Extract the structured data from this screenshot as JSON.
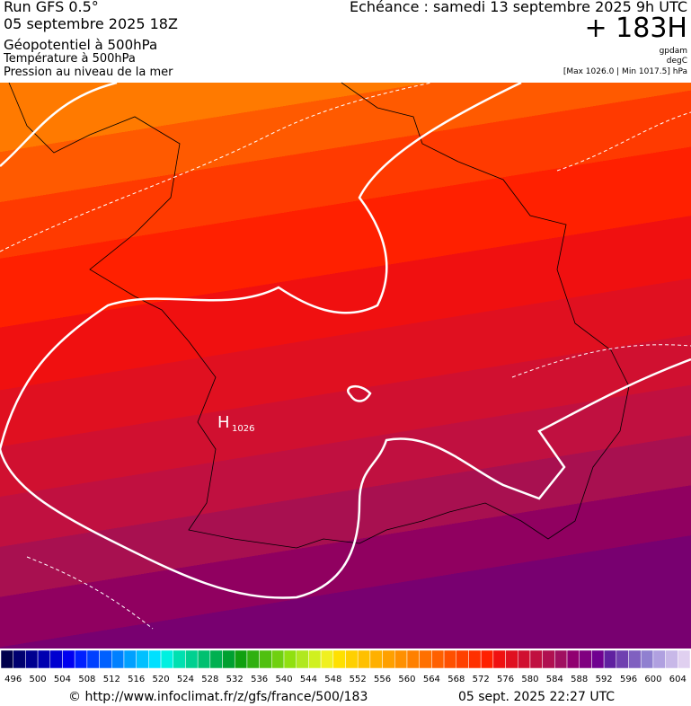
{
  "header": {
    "run": "Run GFS 0.5°",
    "date": "05 septembre 2025 18Z",
    "field1": "Géopotentiel à 500hPa",
    "field2": "Température à 500hPa",
    "field3": "Pression au niveau de la mer",
    "valid": "Echéance : samedi 13 septembre 2025 9h UTC",
    "lead": "+ 183H",
    "unit1": "gpdam",
    "unit2": "degC",
    "range": "[Max 1026.0 | Min 1017.5] hPa"
  },
  "map": {
    "high_symbol": "H",
    "high_value": "1026"
  },
  "colorbar": {
    "labels": [
      496,
      500,
      504,
      508,
      512,
      516,
      520,
      524,
      528,
      532,
      536,
      540,
      544,
      548,
      552,
      556,
      560,
      564,
      568,
      572,
      576,
      580,
      584,
      588,
      592,
      596,
      600,
      604
    ],
    "colors": [
      "#00004c",
      "#000070",
      "#000090",
      "#0000b0",
      "#0000d0",
      "#0000f0",
      "#0020ff",
      "#0040ff",
      "#0060ff",
      "#0080ff",
      "#00a0ff",
      "#00c0ff",
      "#00e0ff",
      "#00f0e0",
      "#00e0b0",
      "#00d090",
      "#00c070",
      "#00b050",
      "#00a030",
      "#10a010",
      "#30b010",
      "#50c010",
      "#70d010",
      "#90e010",
      "#b0e820",
      "#d0f020",
      "#f0f020",
      "#ffe000",
      "#ffd000",
      "#ffc000",
      "#ffb000",
      "#ffa000",
      "#ff9000",
      "#ff8000",
      "#ff7000",
      "#ff6000",
      "#ff5000",
      "#ff4000",
      "#ff3000",
      "#ff2000",
      "#f01010",
      "#e01020",
      "#d01030",
      "#c01040",
      "#b01050",
      "#a01060",
      "#900070",
      "#800080",
      "#700090",
      "#6020a0",
      "#7040b0",
      "#8060c0",
      "#9080d0",
      "#b0a0e0",
      "#c8b8e8",
      "#e0d0f0"
    ]
  },
  "footer": {
    "url": "© http://www.infoclimat.fr/z/gfs/france/500/183",
    "generated": "05 sept. 2025 22:27 UTC"
  }
}
